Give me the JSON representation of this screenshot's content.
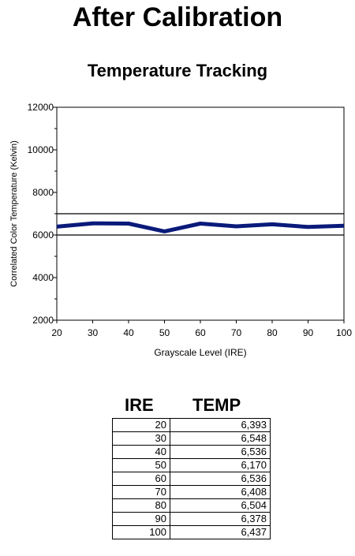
{
  "main_title": "After Calibration",
  "chart_title": "Temperature Tracking",
  "chart_data": {
    "type": "line",
    "title": "Temperature Tracking",
    "xlabel": "Grayscale Level (IRE)",
    "ylabel": "Correlated Color Temperature (Kelvin)",
    "x": [
      20,
      30,
      40,
      50,
      60,
      70,
      80,
      90,
      100
    ],
    "series": [
      {
        "values": [
          6393,
          6548,
          6536,
          6170,
          6536,
          6408,
          6504,
          6378,
          6437
        ],
        "color": "#0a1a7a"
      }
    ],
    "reference_lines": [
      6000,
      7000
    ],
    "xlim": [
      20,
      100
    ],
    "ylim": [
      2000,
      12000
    ],
    "x_ticks": [
      "20",
      "30",
      "40",
      "50",
      "60",
      "70",
      "80",
      "90",
      "100"
    ],
    "y_ticks": [
      "2000",
      "4000",
      "6000",
      "8000",
      "10000",
      "12000"
    ],
    "grid": false,
    "legend": "none"
  },
  "table": {
    "headers": [
      "IRE",
      "TEMP"
    ],
    "rows": [
      [
        "20",
        "6,393"
      ],
      [
        "30",
        "6,548"
      ],
      [
        "40",
        "6,536"
      ],
      [
        "50",
        "6,170"
      ],
      [
        "60",
        "6,536"
      ],
      [
        "70",
        "6,408"
      ],
      [
        "80",
        "6,504"
      ],
      [
        "90",
        "6,378"
      ],
      [
        "100",
        "6,437"
      ]
    ]
  }
}
